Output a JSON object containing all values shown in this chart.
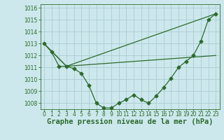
{
  "bg_color": "#cce8ec",
  "grid_color": "#aaccd4",
  "line_color": "#2d6a2d",
  "marker_color": "#2d6a2d",
  "title": "Graphe pression niveau de la mer (hPa)",
  "ylim": [
    1007.5,
    1016.3
  ],
  "yticks": [
    1008,
    1009,
    1010,
    1011,
    1012,
    1013,
    1014,
    1015,
    1016
  ],
  "xlim": [
    -0.5,
    23.5
  ],
  "xticks": [
    0,
    1,
    2,
    3,
    4,
    5,
    6,
    7,
    8,
    9,
    10,
    11,
    12,
    13,
    14,
    15,
    16,
    17,
    18,
    19,
    20,
    21,
    22,
    23
  ],
  "line1_x": [
    0,
    1,
    2,
    3,
    4,
    5,
    6,
    7,
    8,
    9,
    10,
    11,
    12,
    13,
    14,
    15,
    16,
    17,
    18,
    19,
    20,
    21,
    22,
    23
  ],
  "line1_y": [
    1013.0,
    1012.3,
    1011.1,
    1011.1,
    1010.9,
    1010.5,
    1009.5,
    1008.0,
    1007.6,
    1007.6,
    1008.0,
    1008.3,
    1008.7,
    1008.3,
    1008.0,
    1008.6,
    1009.3,
    1010.1,
    1011.0,
    1011.5,
    1012.0,
    1013.2,
    1015.0,
    1015.5
  ],
  "line2_x": [
    0,
    3,
    23
  ],
  "line2_y": [
    1013.0,
    1011.1,
    1015.5
  ],
  "line3_x": [
    0,
    3,
    23
  ],
  "line3_y": [
    1013.0,
    1011.1,
    1012.0
  ],
  "title_fontsize": 7.5,
  "tick_fontsize": 5.5,
  "lw": 0.9,
  "ms": 2.5
}
